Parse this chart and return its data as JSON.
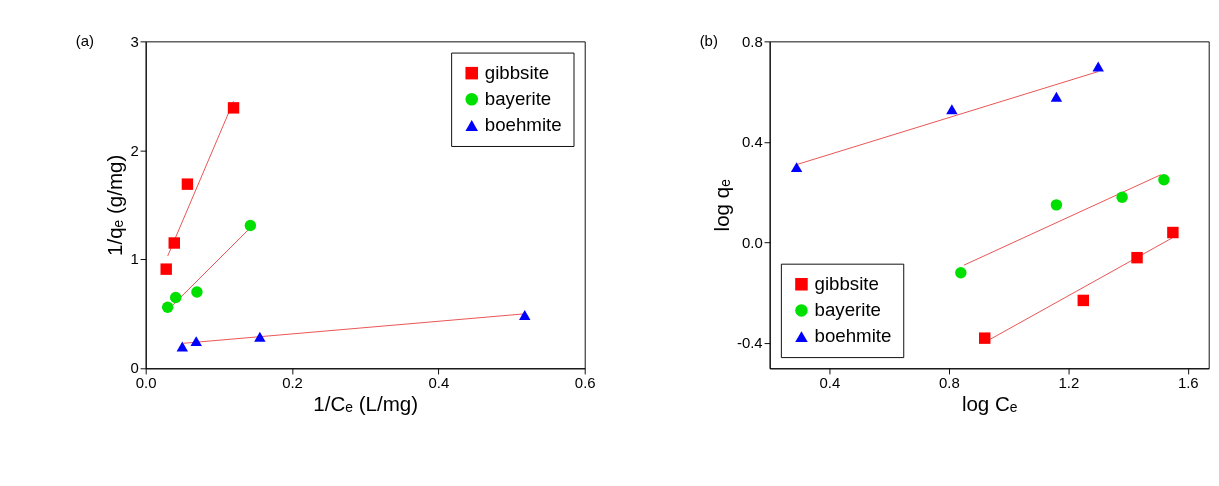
{
  "chart_data": [
    {
      "type": "scatter",
      "annotations": [
        "(a)"
      ],
      "xlabel": "1/Cₑ (L/mg)",
      "ylabel": "1/qₑ (g/mg)",
      "xlim": [
        0,
        0.6
      ],
      "ylim": [
        0,
        3
      ],
      "xticks": [
        {
          "value": 0,
          "label": "0.0"
        },
        0.2,
        0.4,
        0.6
      ],
      "yticks": [
        0,
        1,
        2,
        3
      ],
      "grid": false,
      "legend": "top right",
      "series": [
        {
          "name": "gibbsite",
          "color": "#ff0000",
          "marker": "square",
          "x": [
            0.028,
            0.039,
            0.057,
            0.12
          ],
          "values": [
            0.91,
            1.15,
            1.69,
            2.39
          ]
        },
        {
          "name": "bayerite",
          "color": "#00e000",
          "marker": "circle",
          "x": [
            0.03,
            0.041,
            0.07,
            0.143
          ],
          "values": [
            0.56,
            0.65,
            0.7,
            1.31
          ]
        },
        {
          "name": "boehmite",
          "color": "#0000ff",
          "marker": "triangle",
          "x": [
            0.05,
            0.069,
            0.156,
            0.518
          ],
          "values": [
            0.2,
            0.25,
            0.29,
            0.49
          ]
        },
        {
          "type": "line",
          "color": "#e84a4a",
          "x": [
            0.03,
            0.12
          ],
          "values": [
            1.03,
            2.45
          ]
        },
        {
          "type": "line",
          "color": "#e84a4a",
          "x": [
            0.034,
            0.143
          ],
          "values": [
            0.56,
            1.29
          ]
        },
        {
          "type": "line",
          "color": "#e84a4a",
          "x": [
            0.052,
            0.518
          ],
          "values": [
            0.23,
            0.5
          ]
        }
      ]
    },
    {
      "type": "scatter",
      "annotations": [
        "(b)"
      ],
      "xlabel": "log Cₑ",
      "ylabel": "log qₑ",
      "xlim": [
        0.2,
        1.67
      ],
      "ylim": [
        -0.5,
        0.8
      ],
      "xticks": [
        0.4,
        0.8,
        1.2,
        1.6
      ],
      "yticks": [
        -0.4,
        {
          "value": 0,
          "label": "0.0"
        },
        0.4,
        0.8
      ],
      "grid": false,
      "legend": "bottom left",
      "series": [
        {
          "name": "gibbsite",
          "color": "#ff0000",
          "marker": "square",
          "x": [
            0.92,
            1.25,
            1.43,
            1.55
          ],
          "values": [
            -0.38,
            -0.23,
            -0.06,
            0.04
          ]
        },
        {
          "name": "bayerite",
          "color": "#00e000",
          "marker": "circle",
          "x": [
            0.84,
            1.16,
            1.38,
            1.52
          ],
          "values": [
            -0.12,
            0.15,
            0.18,
            0.25
          ]
        },
        {
          "name": "boehmite",
          "color": "#0000ff",
          "marker": "triangle",
          "x": [
            0.29,
            0.81,
            1.16,
            1.3
          ],
          "values": [
            0.3,
            0.53,
            0.58,
            0.7
          ]
        },
        {
          "type": "line",
          "color": "#e84a4a",
          "x": [
            0.93,
            1.55
          ],
          "values": [
            -0.39,
            0.02
          ]
        },
        {
          "type": "line",
          "color": "#e84a4a",
          "x": [
            0.85,
            1.51
          ],
          "values": [
            -0.09,
            0.27
          ]
        },
        {
          "type": "line",
          "color": "#e84a4a",
          "x": [
            0.29,
            1.3
          ],
          "values": [
            0.31,
            0.68
          ]
        }
      ]
    }
  ]
}
